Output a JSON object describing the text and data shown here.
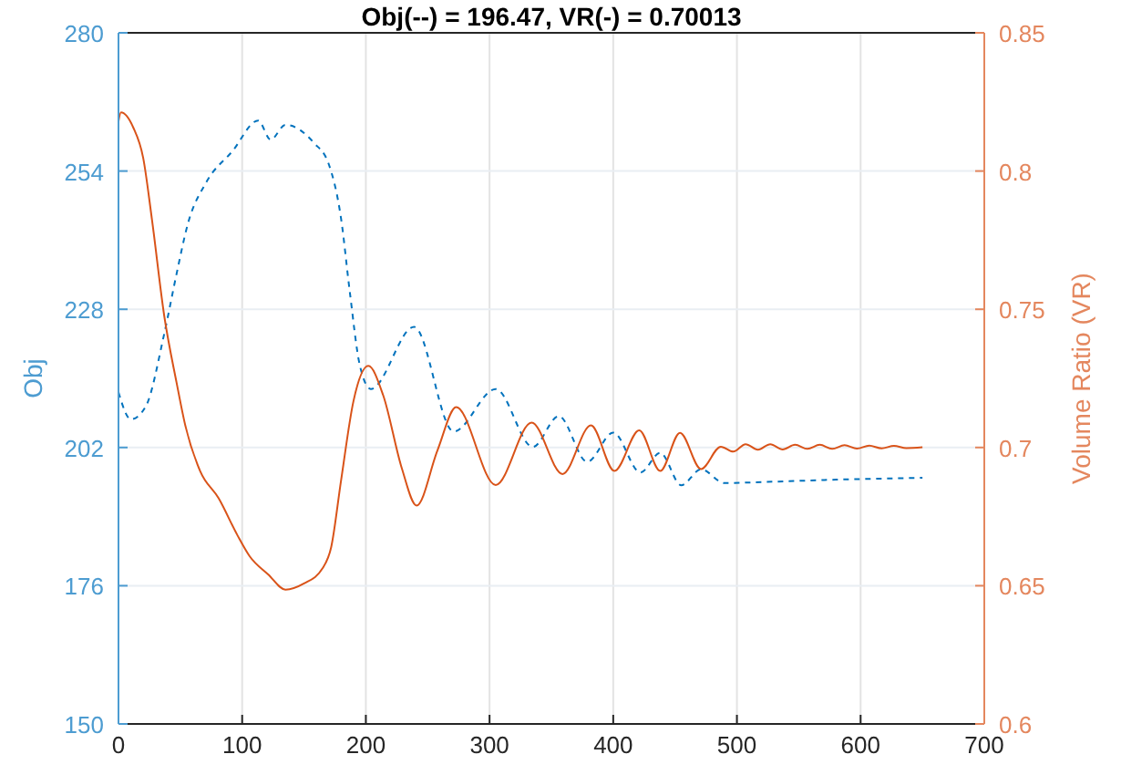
{
  "chart_data": {
    "type": "line",
    "title": "Obj(--) = 196.47, VR(-) = 0.70013",
    "ylabel": "Obj",
    "y2label": "Volume Ratio (VR)",
    "xlim": [
      0,
      700
    ],
    "xticks": [
      0,
      100,
      200,
      300,
      400,
      500,
      600,
      700
    ],
    "ylim": [
      150,
      280
    ],
    "yticks": [
      150,
      176,
      202,
      228,
      254,
      280
    ],
    "y2lim": [
      0.6,
      0.85
    ],
    "y2ticks": [
      0.6,
      0.65,
      0.7,
      0.75,
      0.8,
      0.85
    ],
    "grid": true,
    "series": [
      {
        "color": "#0072bd",
        "line_style": "dashed",
        "x": [
          0,
          10,
          22,
          37,
          47,
          56,
          71,
          92,
          113,
          123,
          135,
          158,
          170,
          180,
          187,
          195,
          204,
          239,
          271,
          305,
          335,
          356,
          379,
          400,
          422,
          438,
          455,
          471,
          490,
          520,
          588,
          650
        ],
        "values": [
          212.4,
          207.3,
          209.7,
          223.4,
          234.7,
          244,
          251.9,
          257.7,
          263.5,
          259.9,
          262.7,
          259.3,
          255.3,
          245,
          231.3,
          217.6,
          213,
          224.7,
          205,
          213,
          202.1,
          207.9,
          199.3,
          204.8,
          197.3,
          201,
          194.9,
          197.9,
          195.3,
          195.5,
          196,
          196.3
        ]
      },
      {
        "color": "#d95319",
        "line_style": "solid",
        "axis": "y2",
        "x": [
          0,
          2,
          12,
          20,
          27,
          37,
          47,
          54,
          66,
          81,
          96,
          106,
          121,
          135,
          150,
          165,
          172,
          180,
          190,
          202,
          214,
          229,
          241,
          258,
          273,
          305,
          334,
          359,
          382,
          401,
          421,
          438,
          454,
          471,
          487,
          497,
          507,
          517,
          527,
          537,
          547,
          557,
          567,
          577,
          587,
          597,
          607,
          617,
          627,
          637,
          650
        ],
        "values": [
          0.818,
          0.8212,
          0.8157,
          0.8047,
          0.7827,
          0.7476,
          0.7234,
          0.708,
          0.6915,
          0.6816,
          0.6684,
          0.6607,
          0.6541,
          0.6486,
          0.6508,
          0.6563,
          0.664,
          0.6882,
          0.7168,
          0.7295,
          0.7189,
          0.6926,
          0.679,
          0.6991,
          0.7146,
          0.6864,
          0.709,
          0.6904,
          0.708,
          0.6915,
          0.7062,
          0.6915,
          0.7053,
          0.6922,
          0.7003,
          0.6985,
          0.7012,
          0.6992,
          0.7012,
          0.6993,
          0.701,
          0.6995,
          0.701,
          0.6995,
          0.7008,
          0.6996,
          0.7007,
          0.6997,
          0.7006,
          0.6998,
          0.7001
        ]
      }
    ]
  }
}
